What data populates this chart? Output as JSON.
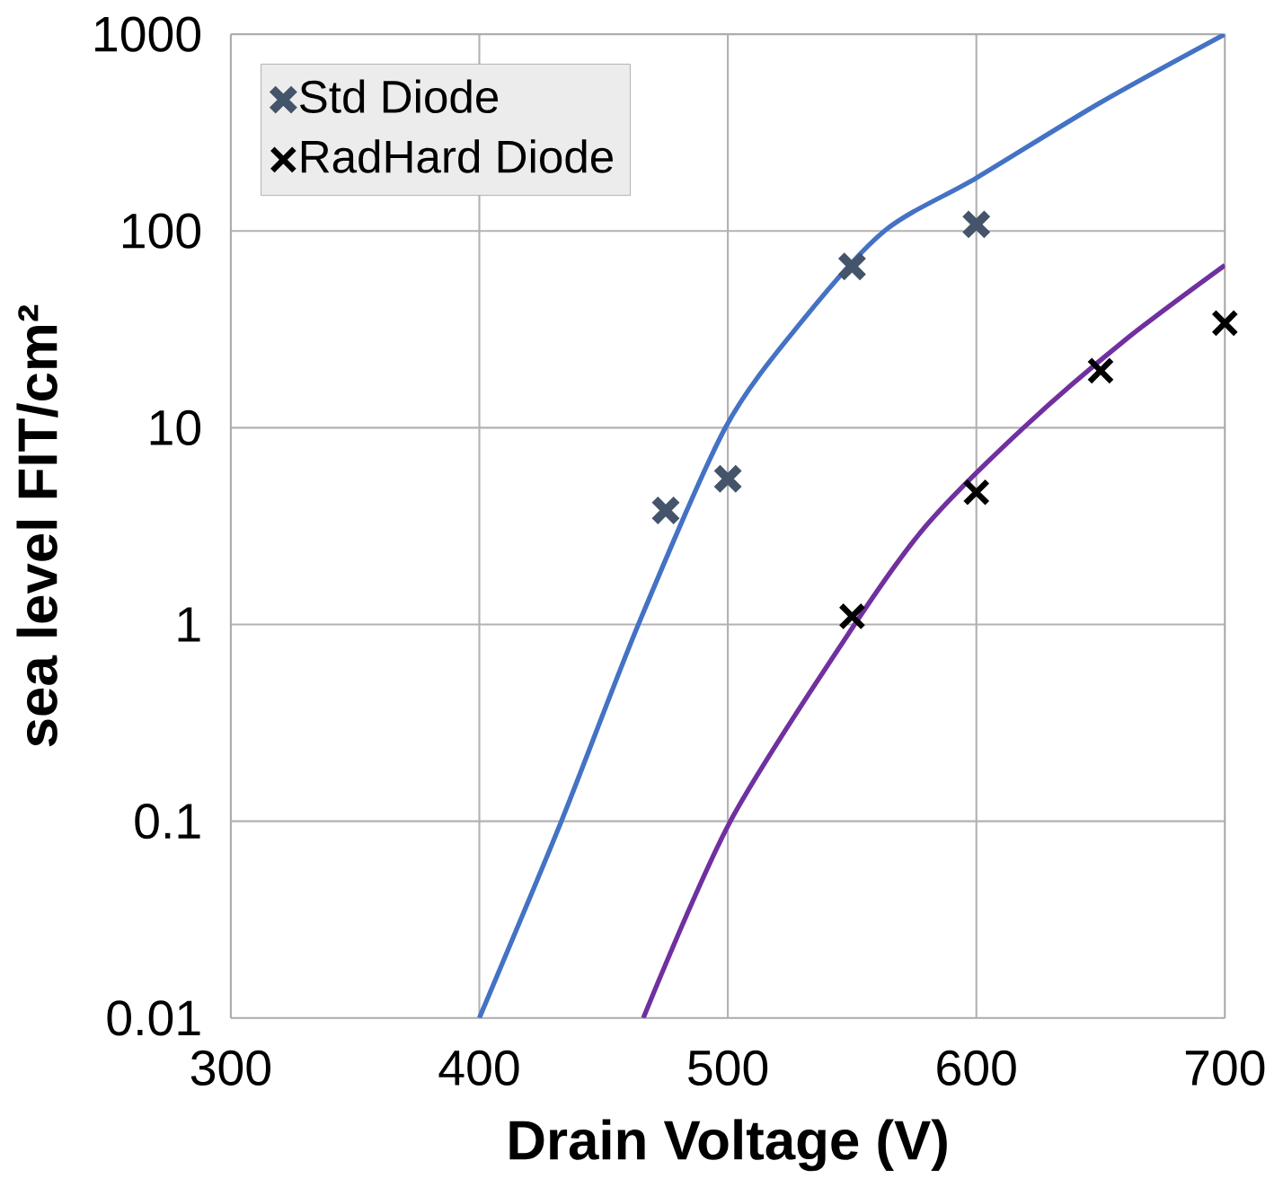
{
  "chart_data": {
    "type": "scatter",
    "xlabel": "Drain Voltage (V)",
    "ylabel": "sea level FIT/cm²",
    "xlim": [
      300,
      700
    ],
    "xticks": [
      300,
      400,
      500,
      600,
      700
    ],
    "ylim": [
      0.01,
      1000
    ],
    "yticks": [
      0.01,
      0.1,
      1,
      10,
      100,
      1000
    ],
    "log": "y",
    "grid": true,
    "legend": "top left",
    "series": [
      {
        "name": "Std Diode",
        "color": "#44546a",
        "marker": "cross",
        "x": [
          475,
          500,
          550,
          600
        ],
        "values": [
          3.8,
          5.5,
          66,
          108
        ]
      },
      {
        "name": "RadHard Diode",
        "color": "#000000",
        "marker": "cross",
        "x": [
          550,
          600,
          650,
          700
        ],
        "values": [
          1.1,
          4.7,
          19.5,
          34
        ]
      },
      {
        "type": "line",
        "color": "#4472c4",
        "line_style": "solid",
        "x": [
          400,
          433,
          464,
          499,
          530,
          563,
          600,
          650,
          700
        ],
        "values": [
          0.01,
          0.1,
          1,
          10,
          35,
          100,
          186,
          450,
          1000
        ]
      },
      {
        "type": "line",
        "color": "#7030a0",
        "line_style": "solid",
        "x": [
          466,
          501,
          551,
          580,
          619,
          660,
          700
        ],
        "values": [
          0.01,
          0.1,
          1,
          3.2,
          10,
          28,
          67
        ]
      }
    ]
  }
}
